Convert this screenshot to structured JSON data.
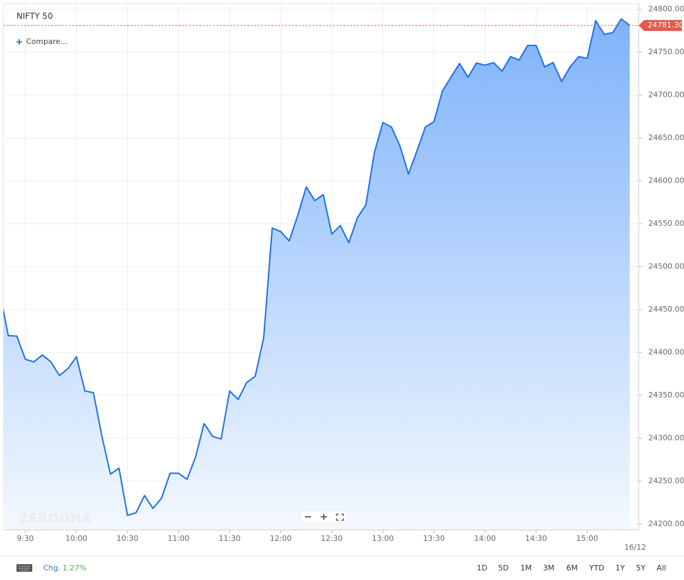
{
  "header": {
    "title": "NIFTY 50",
    "compare": "Compare..."
  },
  "watermark": "ZERODHA",
  "chart_data": {
    "type": "line",
    "x": [
      "9:15",
      "9:20",
      "9:25",
      "9:30",
      "9:35",
      "9:40",
      "9:45",
      "9:50",
      "9:55",
      "10:00",
      "10:05",
      "10:10",
      "10:15",
      "10:20",
      "10:25",
      "10:30",
      "10:35",
      "10:40",
      "10:45",
      "10:50",
      "10:55",
      "11:00",
      "11:05",
      "11:10",
      "11:15",
      "11:20",
      "11:25",
      "11:30",
      "11:35",
      "11:40",
      "11:45",
      "11:50",
      "11:55",
      "12:00",
      "12:05",
      "12:10",
      "12:15",
      "12:20",
      "12:25",
      "12:30",
      "12:35",
      "12:40",
      "12:45",
      "12:50",
      "12:55",
      "13:00",
      "13:05",
      "13:10",
      "13:15",
      "13:20",
      "13:25",
      "13:30",
      "13:35",
      "13:40",
      "13:45",
      "13:50",
      "13:55",
      "14:00",
      "14:05",
      "14:10",
      "14:15",
      "14:20",
      "14:25",
      "14:30",
      "14:35",
      "14:40",
      "14:45",
      "14:50",
      "14:55",
      "15:00",
      "15:05",
      "15:10",
      "15:15",
      "15:20",
      "15:25"
    ],
    "values": [
      24470,
      24419.5,
      24419,
      24392,
      24389,
      24397,
      24389,
      24373,
      24381,
      24395,
      24355,
      24353,
      24302,
      24258,
      24265,
      24210,
      24213,
      24233,
      24218,
      24230,
      24259,
      24259,
      24252,
      24278,
      24317,
      24302,
      24299,
      24355,
      24345,
      24365,
      24372,
      24417,
      24545,
      24541,
      24530,
      24560,
      24593,
      24577,
      24584,
      24538,
      24548,
      24528,
      24557,
      24572,
      24633,
      24668,
      24663,
      24641,
      24608,
      24635,
      24663,
      24669,
      24705,
      24721,
      24737,
      24721,
      24737.5,
      24735,
      24738,
      24728,
      24745,
      24741,
      24758,
      24758,
      24733,
      24738,
      24716,
      24733,
      24745,
      24743,
      24787,
      24771,
      24773,
      24789,
      24781.3
    ],
    "color": "#1f6fe5",
    "fill": true,
    "grid": true,
    "xticks": [
      "9:30",
      "10:00",
      "10:30",
      "11:00",
      "11:30",
      "12:00",
      "12:30",
      "13:00",
      "13:30",
      "14:00",
      "14:30",
      "15:00"
    ],
    "date_label": "16/12",
    "ylim": [
      24193,
      24807
    ],
    "yticks": [
      {
        "value": 24200,
        "label": "24200.00"
      },
      {
        "value": 24250,
        "label": "24250.00"
      },
      {
        "value": 24300,
        "label": "24300.00"
      },
      {
        "value": 24350,
        "label": "24350.00"
      },
      {
        "value": 24400,
        "label": "24400.00"
      },
      {
        "value": 24450,
        "label": "24450.00"
      },
      {
        "value": 24500,
        "label": "24500.00"
      },
      {
        "value": 24550,
        "label": "24550.00"
      },
      {
        "value": 24600,
        "label": "24600.00"
      },
      {
        "value": 24650,
        "label": "24650.00"
      },
      {
        "value": 24700,
        "label": "24700.00"
      },
      {
        "value": 24750,
        "label": "24750.00"
      },
      {
        "value": 24800,
        "label": "24800.00"
      }
    ],
    "last_price": {
      "value": 24781.3,
      "label": "24781.30"
    }
  },
  "footer": {
    "change_label": "Chg.",
    "change": "1.27%",
    "ranges": [
      "1D",
      "5D",
      "1M",
      "3M",
      "6M",
      "YTD",
      "1Y",
      "5Y",
      "All"
    ]
  }
}
